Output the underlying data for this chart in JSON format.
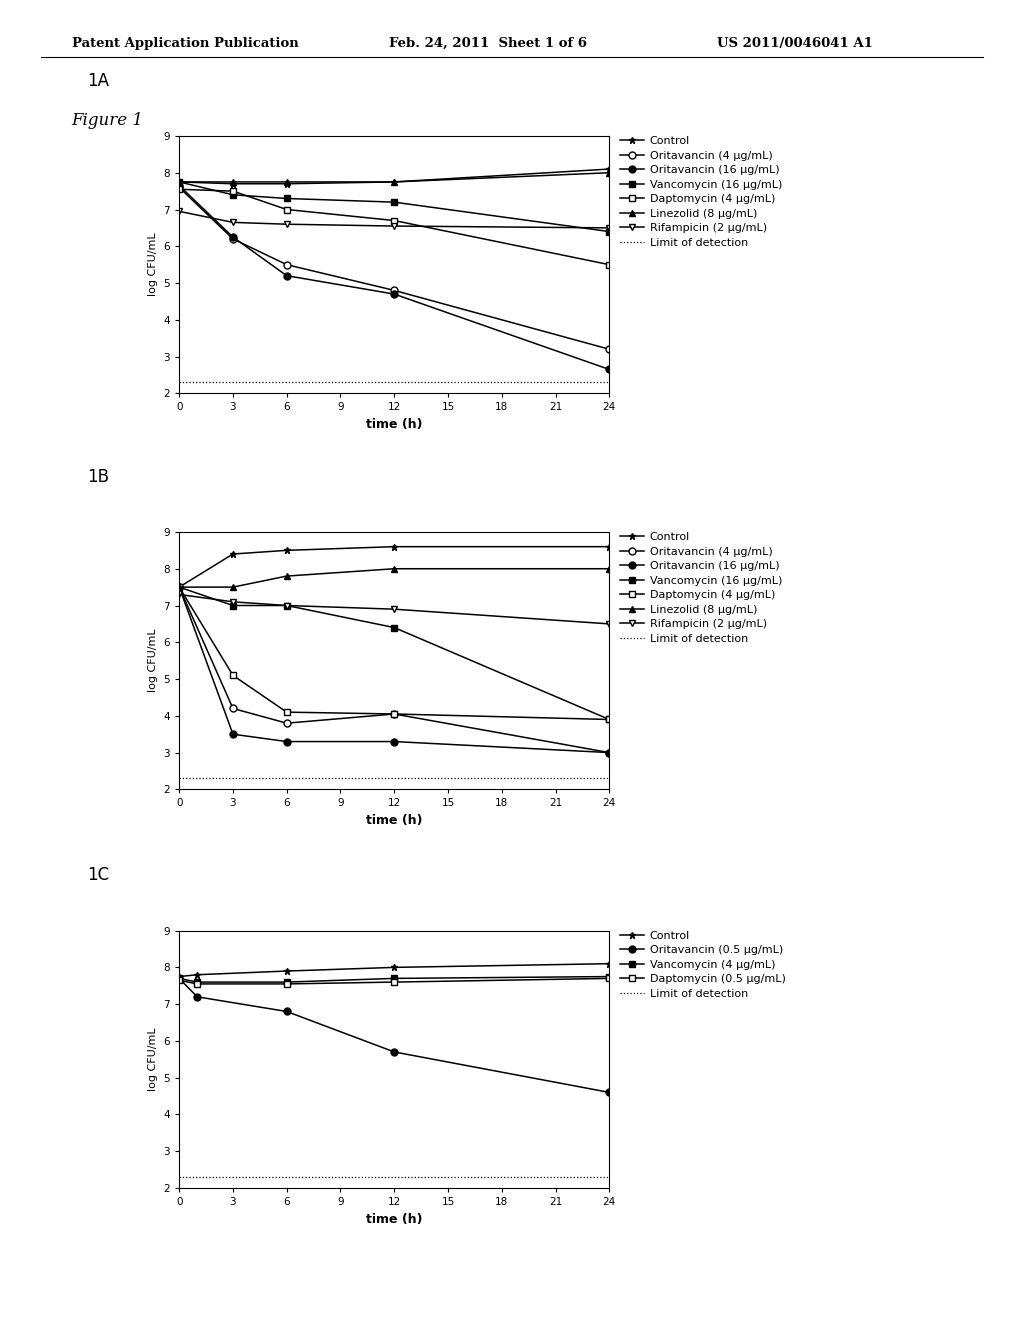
{
  "header_left": "Patent Application Publication",
  "header_mid": "Feb. 24, 2011  Sheet 1 of 6",
  "header_right": "US 2011/0046041 A1",
  "figure_label": "Figure 1",
  "time_points_AB": [
    0,
    3,
    6,
    12,
    24
  ],
  "time_points_C": [
    0,
    1,
    6,
    12,
    24
  ],
  "xlim": [
    0,
    24
  ],
  "ylim": [
    2,
    9
  ],
  "yticks": [
    2,
    3,
    4,
    5,
    6,
    7,
    8,
    9
  ],
  "xticks": [
    0,
    3,
    6,
    9,
    12,
    15,
    18,
    21,
    24
  ],
  "xlabel": "time (h)",
  "ylabel": "log CFU/mL",
  "limit_of_detection": 2.3,
  "plot1A": {
    "label": "1A",
    "series": [
      {
        "name": "Control",
        "marker": "*",
        "filled": true,
        "data": [
          7.75,
          7.7,
          7.7,
          7.75,
          8.1
        ]
      },
      {
        "name": "Oritavancin (4 μg/mL)",
        "marker": "o",
        "filled": false,
        "data": [
          7.6,
          6.2,
          5.5,
          4.8,
          3.2
        ]
      },
      {
        "name": "Oritavancin (16 μg/mL)",
        "marker": "o",
        "filled": true,
        "data": [
          7.65,
          6.25,
          5.2,
          4.7,
          2.65
        ]
      },
      {
        "name": "Vancomycin (16 μg/mL)",
        "marker": "s",
        "filled": true,
        "data": [
          7.75,
          7.4,
          7.3,
          7.2,
          6.4
        ]
      },
      {
        "name": "Daptomycin (4 μg/mL)",
        "marker": "s",
        "filled": false,
        "data": [
          7.55,
          7.5,
          7.0,
          6.7,
          5.5
        ]
      },
      {
        "name": "Linezolid (8 μg/mL)",
        "marker": "^",
        "filled": true,
        "data": [
          7.75,
          7.75,
          7.75,
          7.75,
          8.0
        ]
      },
      {
        "name": "Rifampicin (2 μg/mL)",
        "marker": "v",
        "filled": false,
        "data": [
          6.95,
          6.65,
          6.6,
          6.55,
          6.5
        ]
      }
    ]
  },
  "plot1B": {
    "label": "1B",
    "series": [
      {
        "name": "Control",
        "marker": "*",
        "filled": true,
        "data": [
          7.5,
          8.4,
          8.5,
          8.6,
          8.6
        ]
      },
      {
        "name": "Oritavancin (4 μg/mL)",
        "marker": "o",
        "filled": false,
        "data": [
          7.5,
          4.2,
          3.8,
          4.05,
          3.0
        ]
      },
      {
        "name": "Oritavancin (16 μg/mL)",
        "marker": "o",
        "filled": true,
        "data": [
          7.5,
          3.5,
          3.3,
          3.3,
          3.0
        ]
      },
      {
        "name": "Vancomycin (16 μg/mL)",
        "marker": "s",
        "filled": true,
        "data": [
          7.5,
          7.0,
          7.0,
          6.4,
          3.9
        ]
      },
      {
        "name": "Daptomycin (4 μg/mL)",
        "marker": "s",
        "filled": false,
        "data": [
          7.5,
          5.1,
          4.1,
          4.05,
          3.9
        ]
      },
      {
        "name": "Linezolid (8 μg/mL)",
        "marker": "^",
        "filled": true,
        "data": [
          7.5,
          7.5,
          7.8,
          8.0,
          8.0
        ]
      },
      {
        "name": "Rifampicin (2 μg/mL)",
        "marker": "v",
        "filled": false,
        "data": [
          7.3,
          7.1,
          7.0,
          6.9,
          6.5
        ]
      }
    ]
  },
  "plot1C": {
    "label": "1C",
    "series": [
      {
        "name": "Control",
        "marker": "*",
        "filled": true,
        "data": [
          7.75,
          7.8,
          7.9,
          8.0,
          8.1
        ]
      },
      {
        "name": "Oritavancin (0.5 μg/mL)",
        "marker": "o",
        "filled": true,
        "data": [
          7.7,
          7.2,
          6.8,
          5.7,
          4.6
        ]
      },
      {
        "name": "Vancomycin (4 μg/mL)",
        "marker": "s",
        "filled": true,
        "data": [
          7.7,
          7.6,
          7.6,
          7.7,
          7.75
        ]
      },
      {
        "name": "Daptomycin (0.5 μg/mL)",
        "marker": "s",
        "filled": false,
        "data": [
          7.65,
          7.55,
          7.55,
          7.6,
          7.7
        ]
      }
    ]
  },
  "background_color": "#ffffff",
  "line_color": "#000000"
}
